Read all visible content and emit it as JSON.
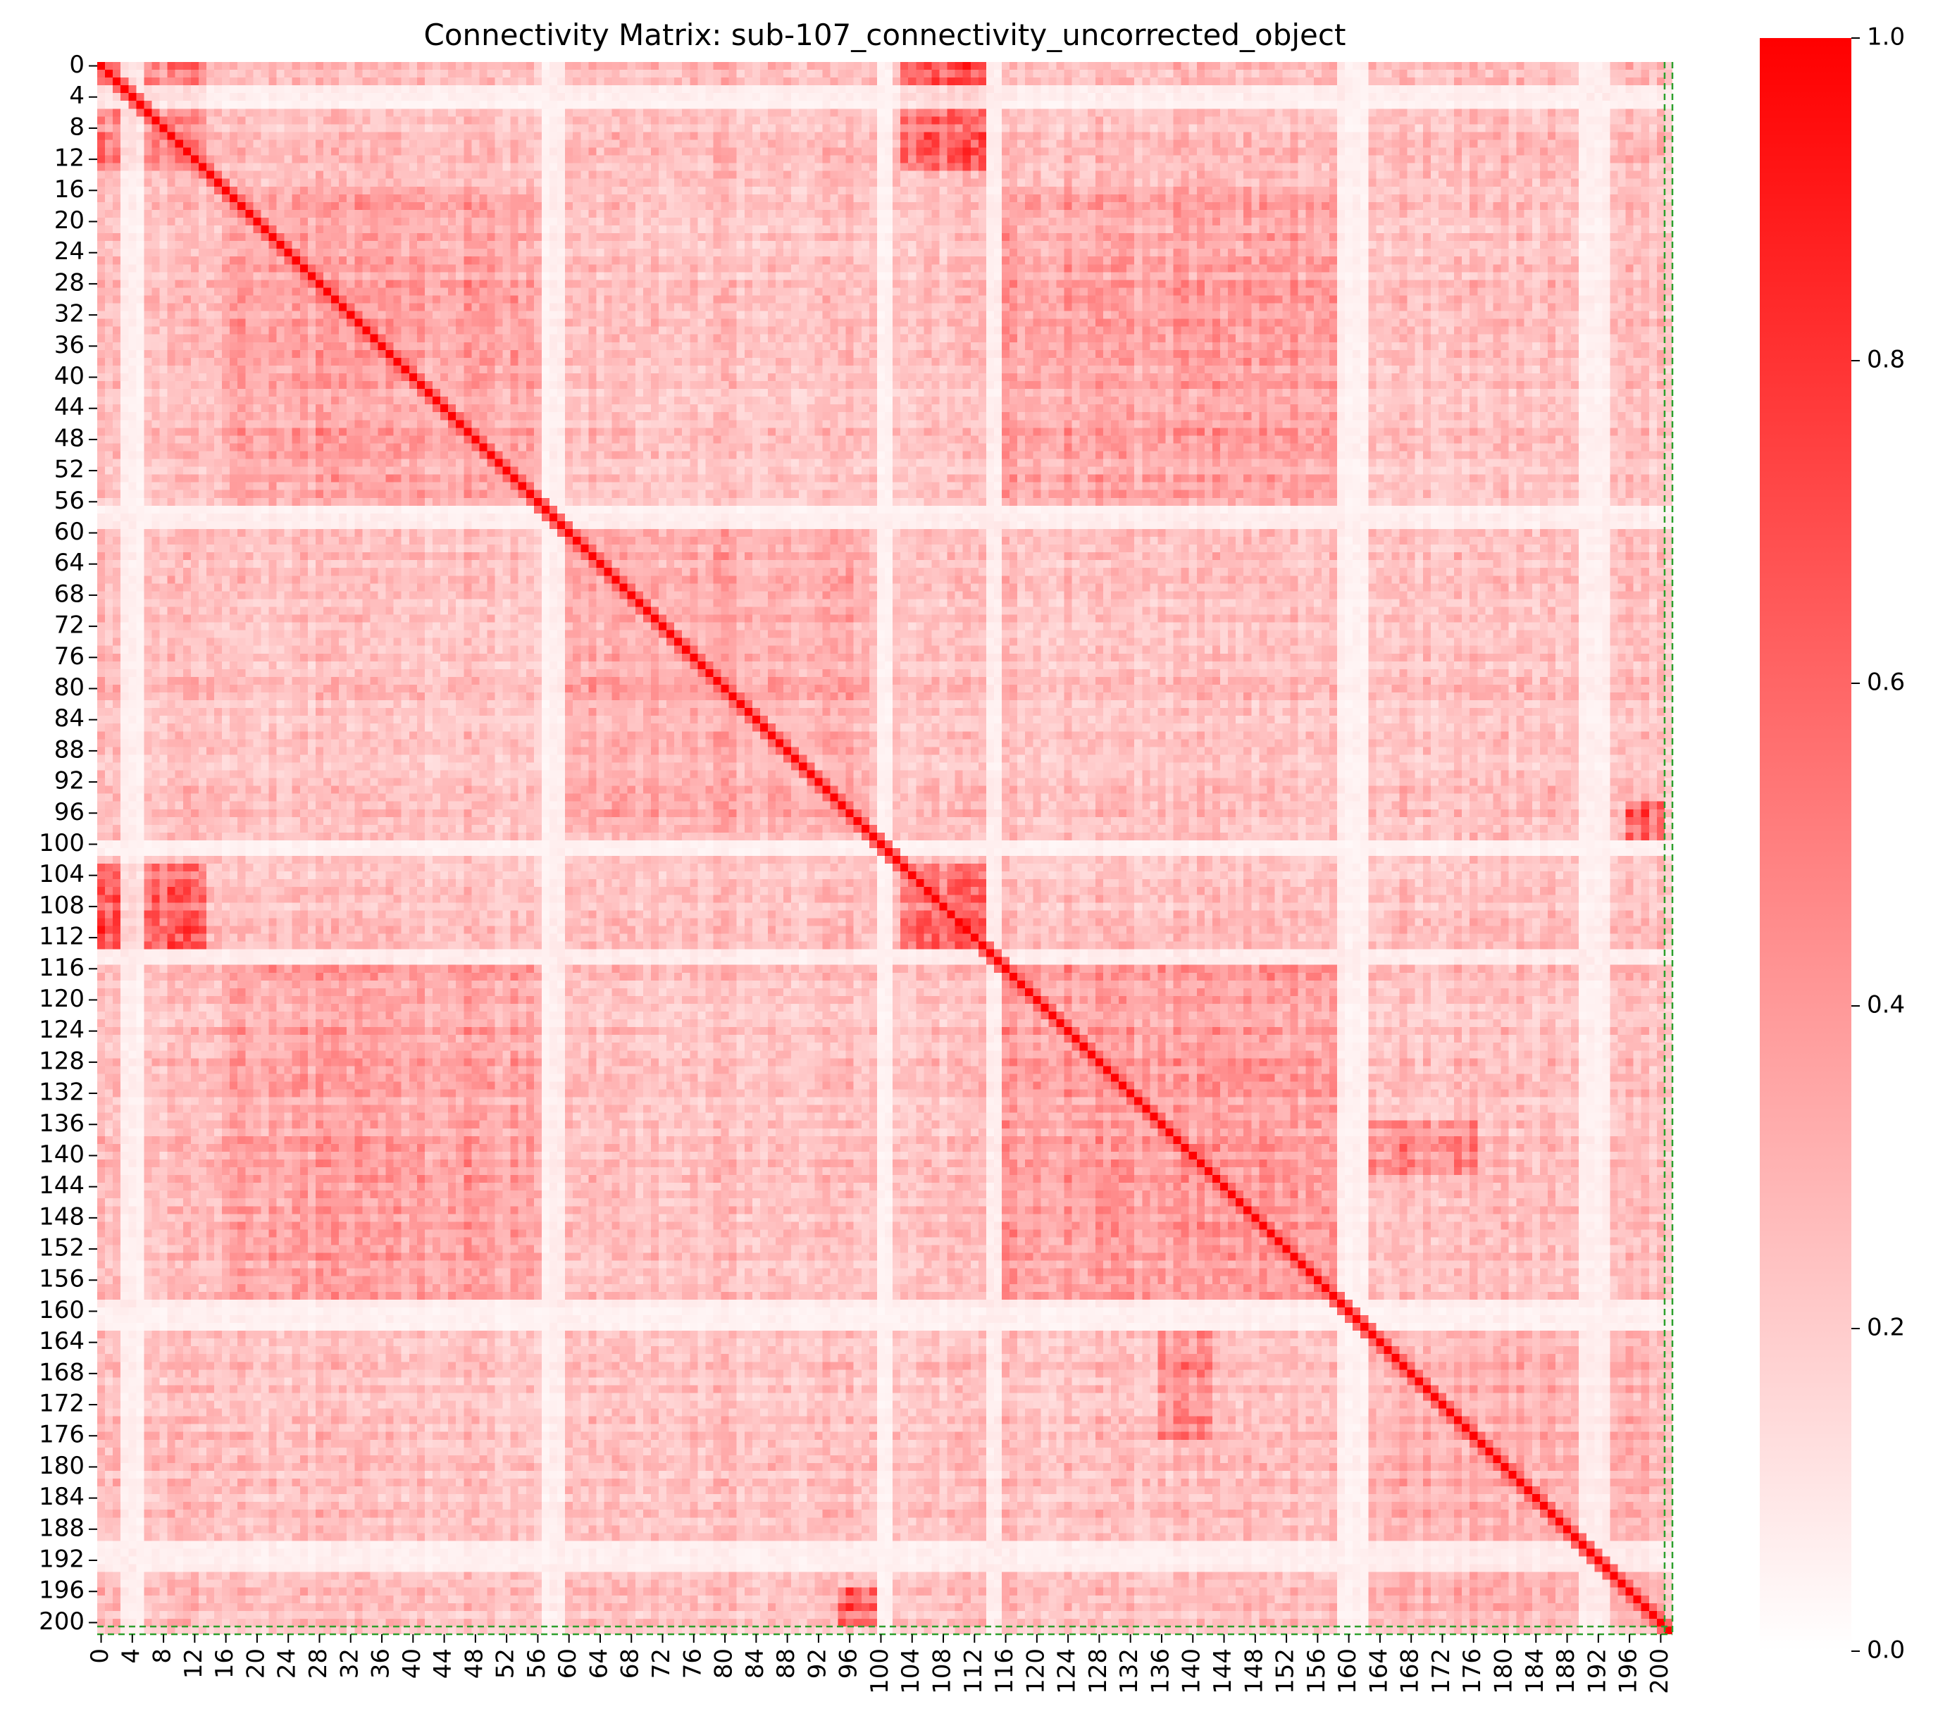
{
  "chart_data": {
    "type": "heatmap",
    "title": "Connectivity Matrix: sub-107_connectivity_uncorrected_object",
    "xlabel": "",
    "ylabel": "",
    "n_nodes": 202,
    "x_tick_labels": [
      "0",
      "4",
      "8",
      "12",
      "16",
      "20",
      "24",
      "28",
      "32",
      "36",
      "40",
      "44",
      "48",
      "52",
      "56",
      "60",
      "64",
      "68",
      "72",
      "76",
      "80",
      "84",
      "88",
      "92",
      "96",
      "100",
      "104",
      "108",
      "112",
      "116",
      "120",
      "124",
      "128",
      "132",
      "136",
      "140",
      "144",
      "148",
      "152",
      "156",
      "160",
      "164",
      "168",
      "172",
      "176",
      "180",
      "184",
      "188",
      "192",
      "196",
      "200"
    ],
    "y_tick_labels": [
      "0",
      "4",
      "8",
      "12",
      "16",
      "20",
      "24",
      "28",
      "32",
      "36",
      "40",
      "44",
      "48",
      "52",
      "56",
      "60",
      "64",
      "68",
      "72",
      "76",
      "80",
      "84",
      "88",
      "92",
      "96",
      "100",
      "104",
      "108",
      "112",
      "116",
      "120",
      "124",
      "128",
      "132",
      "136",
      "140",
      "144",
      "148",
      "152",
      "156",
      "160",
      "164",
      "168",
      "172",
      "176",
      "180",
      "184",
      "188",
      "192",
      "196",
      "200"
    ],
    "tick_step": 4,
    "diagonal_value": 1.0,
    "value_range": [
      0.0,
      1.0
    ],
    "colormap": {
      "low": "#ffffff",
      "high": "#ff0000"
    },
    "colorbar": {
      "ticks": [
        "0.0",
        "0.2",
        "0.4",
        "0.6",
        "0.8",
        "1.0"
      ],
      "tick_values": [
        0.0,
        0.2,
        0.4,
        0.6,
        0.8,
        1.0
      ],
      "placement": "right"
    },
    "highlight": {
      "rows": [
        201
      ],
      "cols": [
        201
      ],
      "color": "#2ca02c",
      "style": "dashed"
    },
    "blocks": [
      {
        "rows": [
          0,
          13
        ],
        "cols": [
          103,
          113
        ],
        "strength": 0.72
      },
      {
        "rows": [
          103,
          113
        ],
        "cols": [
          103,
          113
        ],
        "strength": 0.7
      },
      {
        "rows": [
          0,
          13
        ],
        "cols": [
          0,
          13
        ],
        "strength": 0.55
      },
      {
        "rows": [
          16,
          56
        ],
        "cols": [
          16,
          56
        ],
        "strength": 0.45
      },
      {
        "rows": [
          16,
          56
        ],
        "cols": [
          116,
          158
        ],
        "strength": 0.45
      },
      {
        "rows": [
          116,
          158
        ],
        "cols": [
          116,
          158
        ],
        "strength": 0.47
      },
      {
        "rows": [
          60,
          98
        ],
        "cols": [
          60,
          98
        ],
        "strength": 0.4
      },
      {
        "rows": [
          163,
          199
        ],
        "cols": [
          163,
          199
        ],
        "strength": 0.37
      },
      {
        "rows": [
          136,
          142
        ],
        "cols": [
          163,
          176
        ],
        "strength": 0.55
      },
      {
        "rows": [
          95,
          99
        ],
        "cols": [
          196,
          200
        ],
        "strength": 0.7
      }
    ],
    "weak_bands": [
      3,
      4,
      5,
      57,
      58,
      59,
      100,
      101,
      114,
      115,
      159,
      160,
      161,
      162,
      190,
      191,
      192,
      193
    ]
  }
}
